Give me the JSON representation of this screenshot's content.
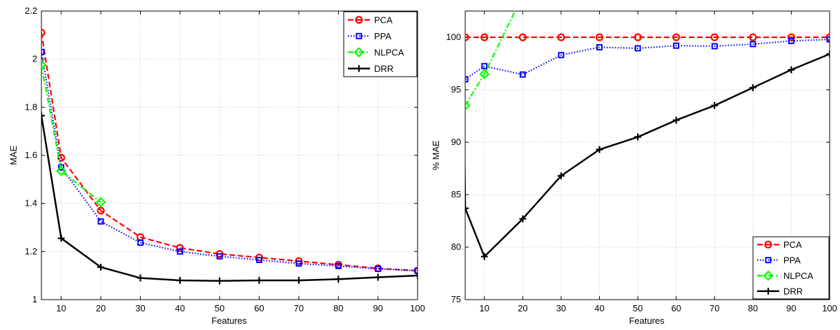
{
  "chart_data": [
    {
      "type": "line",
      "xlabel": "Features",
      "ylabel": "MAE",
      "xlim": [
        5,
        100
      ],
      "ylim": [
        1,
        2.2
      ],
      "grid": true,
      "legend_position": "top-right",
      "x_ticks": [
        "10",
        "20",
        "30",
        "40",
        "50",
        "60",
        "70",
        "80",
        "90",
        "100"
      ],
      "y_ticks": [
        "1",
        "1.2",
        "1.4",
        "1.6",
        "1.8",
        "2",
        "2.2"
      ],
      "series": [
        {
          "name": "PCA",
          "color": "#ff0000",
          "line_style": "dashed",
          "marker": "circle",
          "x": [
            5,
            10,
            20,
            30,
            40,
            50,
            60,
            70,
            80,
            90,
            100
          ],
          "y": [
            2.11,
            1.59,
            1.37,
            1.26,
            1.215,
            1.19,
            1.175,
            1.16,
            1.145,
            1.13,
            1.12
          ]
        },
        {
          "name": "PPA",
          "color": "#0000ff",
          "line_style": "dotted",
          "marker": "square",
          "x": [
            5,
            10,
            20,
            30,
            40,
            50,
            60,
            70,
            80,
            90,
            100
          ],
          "y": [
            2.03,
            1.55,
            1.325,
            1.237,
            1.2,
            1.18,
            1.165,
            1.15,
            1.14,
            1.128,
            1.12
          ]
        },
        {
          "name": "NLPCA",
          "color": "#00ff00",
          "line_style": "dashdot",
          "marker": "diamond",
          "x": [
            5,
            10,
            20
          ],
          "y": [
            1.975,
            1.535,
            1.405
          ]
        },
        {
          "name": "DRR",
          "color": "#000000",
          "line_style": "solid",
          "marker": "plus",
          "x": [
            5,
            10,
            20,
            30,
            40,
            50,
            60,
            70,
            80,
            90,
            100
          ],
          "y": [
            1.765,
            1.255,
            1.135,
            1.09,
            1.08,
            1.078,
            1.08,
            1.08,
            1.085,
            1.093,
            1.1
          ]
        }
      ]
    },
    {
      "type": "line",
      "xlabel": "Features",
      "ylabel": "% MAE",
      "xlim": [
        5,
        100
      ],
      "ylim": [
        75,
        102.5
      ],
      "grid": true,
      "legend_position": "bottom-right",
      "x_ticks": [
        "10",
        "20",
        "30",
        "40",
        "50",
        "60",
        "70",
        "80",
        "90",
        "100"
      ],
      "y_ticks": [
        "75",
        "80",
        "85",
        "90",
        "95",
        "100"
      ],
      "series": [
        {
          "name": "PCA",
          "color": "#ff0000",
          "line_style": "dashed",
          "marker": "circle",
          "x": [
            5,
            10,
            20,
            30,
            40,
            50,
            60,
            70,
            80,
            90,
            100
          ],
          "y": [
            100,
            100,
            100,
            100,
            100,
            100,
            100,
            100,
            100,
            100,
            100
          ]
        },
        {
          "name": "PPA",
          "color": "#0000ff",
          "line_style": "dotted",
          "marker": "square",
          "x": [
            5,
            10,
            20,
            30,
            40,
            50,
            60,
            70,
            80,
            90,
            100
          ],
          "y": [
            96,
            97.25,
            96.45,
            98.3,
            99.05,
            98.95,
            99.2,
            99.15,
            99.35,
            99.65,
            99.8
          ]
        },
        {
          "name": "NLPCA",
          "color": "#00ff00",
          "line_style": "dashdot",
          "marker": "diamond",
          "x": [
            5,
            10,
            20
          ],
          "y": [
            93.5,
            96.5,
            104
          ]
        },
        {
          "name": "DRR",
          "color": "#000000",
          "line_style": "solid",
          "marker": "plus",
          "x": [
            4.4,
            5,
            10,
            20,
            30,
            40,
            50,
            60,
            70,
            80,
            90,
            100
          ],
          "y": [
            104,
            83.7,
            79.1,
            82.7,
            86.8,
            89.3,
            90.5,
            92.1,
            93.5,
            95.2,
            96.9,
            98.4
          ]
        }
      ]
    }
  ]
}
